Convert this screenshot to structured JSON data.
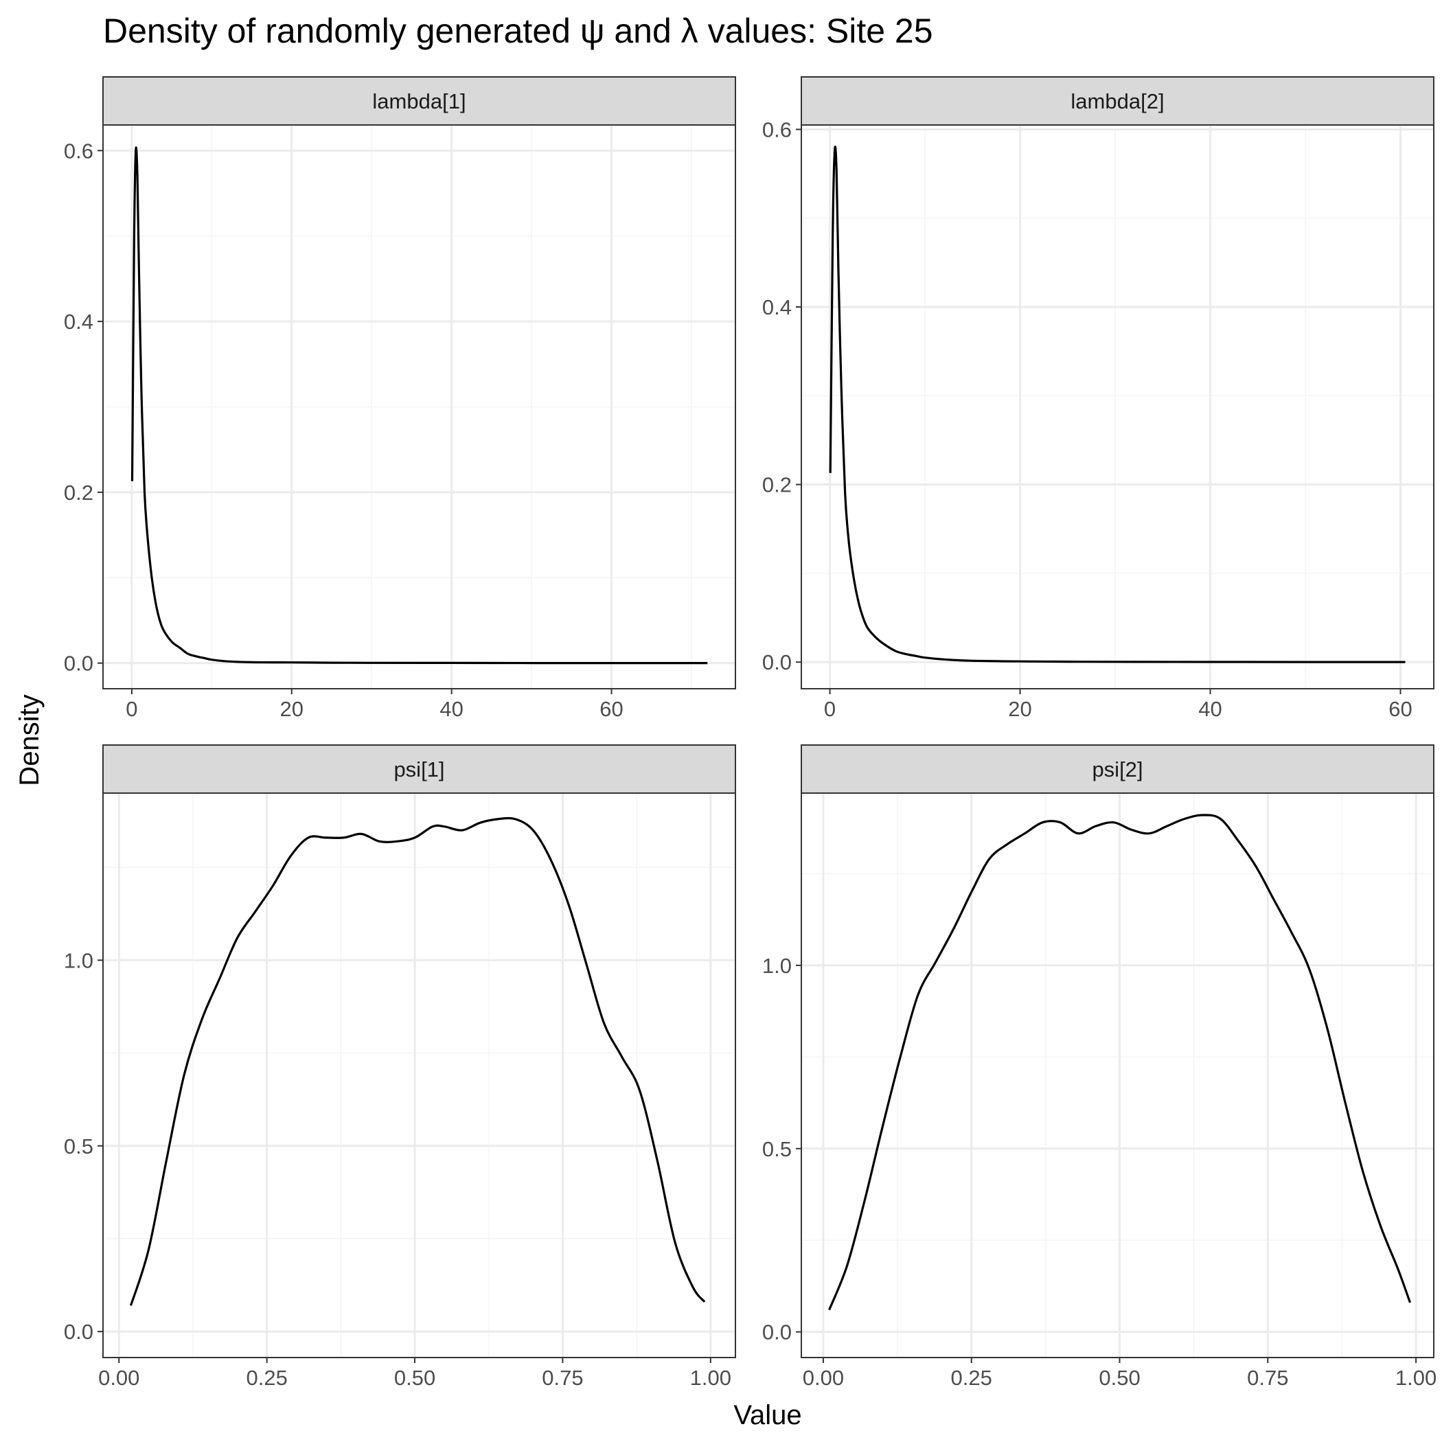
{
  "title": "Density of randomly generated ψ and λ values: Site 25",
  "xlabel": "Value",
  "ylabel": "Density",
  "colors": {
    "line": "#000000",
    "strip_fill": "#d9d9d9",
    "panel_border": "#333333",
    "grid_major": "#ebebeb",
    "grid_minor": "#f4f4f4",
    "tick_text": "#4d4d4d"
  },
  "chart_data": [
    {
      "type": "line",
      "facet": "lambda[1]",
      "xlim": [
        -3.6,
        75.5
      ],
      "ylim": [
        -0.03,
        0.63
      ],
      "xticks": [
        0,
        20,
        40,
        60
      ],
      "xtick_labels": [
        "0",
        "20",
        "40",
        "60"
      ],
      "yticks": [
        0,
        0.2,
        0.4,
        0.6
      ],
      "ytick_labels": [
        "0.0",
        "0.2",
        "0.4",
        "0.6"
      ],
      "x": [
        0.05,
        0.3,
        0.5,
        0.7,
        0.9,
        1.2,
        1.6,
        2.0,
        2.5,
        3.0,
        3.5,
        4.0,
        5.0,
        6.0,
        7.0,
        8.0,
        9.0,
        10.0,
        12.0,
        15.0,
        20.0,
        25.0,
        30.0,
        40.0,
        50.0,
        60.0,
        72.0
      ],
      "y": [
        0.213,
        0.5,
        0.6,
        0.57,
        0.46,
        0.32,
        0.2,
        0.145,
        0.1,
        0.07,
        0.05,
        0.038,
        0.025,
        0.018,
        0.011,
        0.008,
        0.006,
        0.004,
        0.002,
        0.001,
        0.0008,
        0.0005,
        0.0003,
        0.0002,
        0.0001,
        0.0001,
        0.0001
      ]
    },
    {
      "type": "line",
      "facet": "lambda[2]",
      "xlim": [
        -3.0,
        63.5
      ],
      "ylim": [
        -0.03,
        0.605
      ],
      "xticks": [
        0,
        20,
        40,
        60
      ],
      "xtick_labels": [
        "0",
        "20",
        "40",
        "60"
      ],
      "yticks": [
        0,
        0.2,
        0.4,
        0.6
      ],
      "ytick_labels": [
        "0.0",
        "0.2",
        "0.4",
        "0.6"
      ],
      "x": [
        0.05,
        0.3,
        0.5,
        0.7,
        0.9,
        1.2,
        1.6,
        2.0,
        2.5,
        3.0,
        3.5,
        4.0,
        5.0,
        6.0,
        7.0,
        8.0,
        9.0,
        10.0,
        12.0,
        15.0,
        20.0,
        25.0,
        30.0,
        40.0,
        50.0,
        60.5
      ],
      "y": [
        0.213,
        0.48,
        0.575,
        0.555,
        0.44,
        0.31,
        0.19,
        0.135,
        0.095,
        0.068,
        0.05,
        0.038,
        0.026,
        0.018,
        0.012,
        0.009,
        0.007,
        0.005,
        0.003,
        0.0015,
        0.0008,
        0.0005,
        0.0003,
        0.0002,
        0.0001,
        0.0001
      ]
    },
    {
      "type": "line",
      "facet": "psi[1]",
      "xlim": [
        -0.027,
        1.042
      ],
      "ylim": [
        -0.07,
        1.45
      ],
      "xticks": [
        0.0,
        0.25,
        0.5,
        0.75,
        1.0
      ],
      "xtick_labels": [
        "0.00",
        "0.25",
        "0.50",
        "0.75",
        "1.00"
      ],
      "yticks": [
        0.0,
        0.5,
        1.0
      ],
      "ytick_labels": [
        "0.0",
        "0.5",
        "1.0"
      ],
      "x": [
        0.02,
        0.05,
        0.08,
        0.11,
        0.14,
        0.17,
        0.2,
        0.23,
        0.26,
        0.29,
        0.32,
        0.35,
        0.38,
        0.41,
        0.44,
        0.47,
        0.5,
        0.53,
        0.55,
        0.58,
        0.61,
        0.64,
        0.67,
        0.7,
        0.73,
        0.76,
        0.79,
        0.82,
        0.85,
        0.88,
        0.91,
        0.94,
        0.97,
        0.99
      ],
      "y": [
        0.07,
        0.22,
        0.46,
        0.69,
        0.84,
        0.95,
        1.06,
        1.13,
        1.2,
        1.28,
        1.33,
        1.33,
        1.33,
        1.34,
        1.32,
        1.32,
        1.33,
        1.36,
        1.36,
        1.35,
        1.37,
        1.38,
        1.38,
        1.35,
        1.27,
        1.15,
        0.99,
        0.83,
        0.74,
        0.65,
        0.46,
        0.24,
        0.12,
        0.08
      ]
    },
    {
      "type": "line",
      "facet": "psi[2]",
      "xlim": [
        -0.037,
        1.03
      ],
      "ylim": [
        -0.07,
        1.47
      ],
      "xticks": [
        0.0,
        0.25,
        0.5,
        0.75,
        1.0
      ],
      "xtick_labels": [
        "0.00",
        "0.25",
        "0.50",
        "0.75",
        "1.00"
      ],
      "yticks": [
        0.0,
        0.5,
        1.0
      ],
      "ytick_labels": [
        "0.0",
        "0.5",
        "1.0"
      ],
      "x": [
        0.01,
        0.04,
        0.07,
        0.1,
        0.13,
        0.16,
        0.19,
        0.22,
        0.25,
        0.28,
        0.31,
        0.34,
        0.37,
        0.4,
        0.43,
        0.46,
        0.49,
        0.52,
        0.55,
        0.58,
        0.61,
        0.64,
        0.67,
        0.7,
        0.73,
        0.76,
        0.79,
        0.82,
        0.85,
        0.88,
        0.91,
        0.94,
        0.97,
        0.99
      ],
      "y": [
        0.06,
        0.18,
        0.36,
        0.56,
        0.75,
        0.92,
        1.01,
        1.1,
        1.2,
        1.29,
        1.33,
        1.36,
        1.39,
        1.39,
        1.36,
        1.38,
        1.39,
        1.37,
        1.36,
        1.38,
        1.4,
        1.41,
        1.4,
        1.34,
        1.27,
        1.18,
        1.09,
        0.99,
        0.83,
        0.63,
        0.44,
        0.29,
        0.17,
        0.08
      ]
    }
  ]
}
